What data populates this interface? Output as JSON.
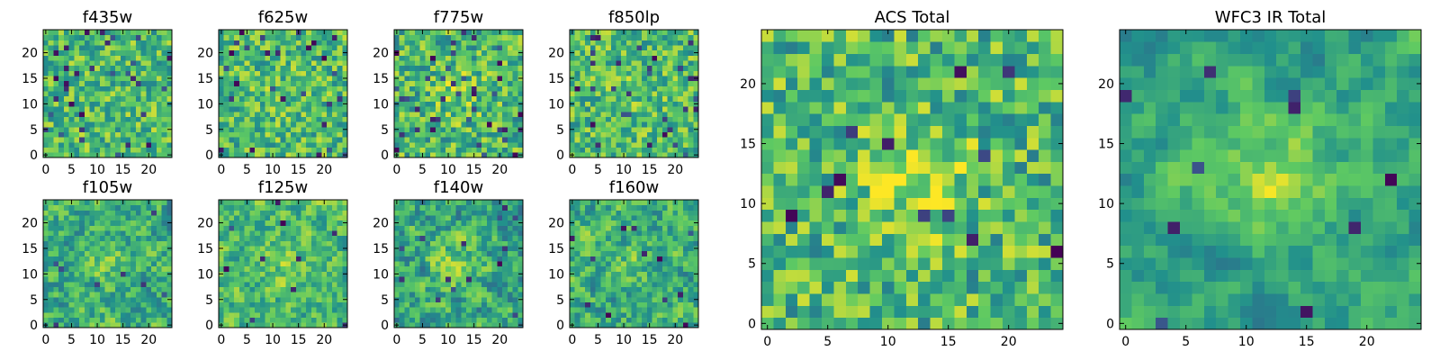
{
  "figure": {
    "colormap": "viridis",
    "color_stops": [
      "#440154",
      "#3b528b",
      "#21908c",
      "#5dc963",
      "#fde725"
    ]
  },
  "chart_data": [
    {
      "type": "heatmap",
      "title": "f435w",
      "grid_size": 25,
      "x_ticks": [
        0,
        5,
        10,
        15,
        20
      ],
      "y_ticks": [
        0,
        5,
        10,
        15,
        20
      ],
      "xlim": [
        -0.5,
        24.5
      ],
      "ylim": [
        -0.5,
        24.5
      ],
      "seed": 11,
      "smooth": 0,
      "level_range": [
        0.45,
        0.92
      ],
      "dark_spots": 34,
      "bright_center": 0.0
    },
    {
      "type": "heatmap",
      "title": "f625w",
      "grid_size": 25,
      "x_ticks": [
        0,
        5,
        10,
        15,
        20
      ],
      "y_ticks": [
        0,
        5,
        10,
        15,
        20
      ],
      "xlim": [
        -0.5,
        24.5
      ],
      "ylim": [
        -0.5,
        24.5
      ],
      "seed": 23,
      "smooth": 0,
      "level_range": [
        0.45,
        0.92
      ],
      "dark_spots": 28,
      "bright_center": 0.05
    },
    {
      "type": "heatmap",
      "title": "f775w",
      "grid_size": 25,
      "x_ticks": [
        0,
        5,
        10,
        15,
        20
      ],
      "y_ticks": [
        0,
        5,
        10,
        15,
        20
      ],
      "xlim": [
        -0.5,
        24.5
      ],
      "ylim": [
        -0.5,
        24.5
      ],
      "seed": 37,
      "smooth": 0,
      "level_range": [
        0.42,
        0.92
      ],
      "dark_spots": 40,
      "bright_center": 0.12
    },
    {
      "type": "heatmap",
      "title": "f850lp",
      "grid_size": 25,
      "x_ticks": [
        0,
        5,
        10,
        15,
        20
      ],
      "y_ticks": [
        0,
        5,
        10,
        15,
        20
      ],
      "xlim": [
        -0.5,
        24.5
      ],
      "ylim": [
        -0.5,
        24.5
      ],
      "seed": 41,
      "smooth": 0,
      "level_range": [
        0.45,
        0.92
      ],
      "dark_spots": 30,
      "bright_center": 0.05
    },
    {
      "type": "heatmap",
      "title": "f105w",
      "grid_size": 25,
      "x_ticks": [
        0,
        5,
        10,
        15,
        20
      ],
      "y_ticks": [
        0,
        5,
        10,
        15,
        20
      ],
      "xlim": [
        -0.5,
        24.5
      ],
      "ylim": [
        -0.5,
        24.5
      ],
      "seed": 53,
      "smooth": 1,
      "level_range": [
        0.3,
        0.95
      ],
      "dark_spots": 8,
      "bright_center": 0.1
    },
    {
      "type": "heatmap",
      "title": "f125w",
      "grid_size": 25,
      "x_ticks": [
        0,
        5,
        10,
        15,
        20
      ],
      "y_ticks": [
        0,
        5,
        10,
        15,
        20
      ],
      "xlim": [
        -0.5,
        24.5
      ],
      "ylim": [
        -0.5,
        24.5
      ],
      "seed": 61,
      "smooth": 1,
      "level_range": [
        0.35,
        0.97
      ],
      "dark_spots": 10,
      "bright_center": 0.12
    },
    {
      "type": "heatmap",
      "title": "f140w",
      "grid_size": 25,
      "x_ticks": [
        0,
        5,
        10,
        15,
        20
      ],
      "y_ticks": [
        0,
        5,
        10,
        15,
        20
      ],
      "xlim": [
        -0.5,
        24.5
      ],
      "ylim": [
        -0.5,
        24.5
      ],
      "seed": 71,
      "smooth": 1,
      "level_range": [
        0.25,
        0.95
      ],
      "dark_spots": 14,
      "bright_center": 0.15
    },
    {
      "type": "heatmap",
      "title": "f160w",
      "grid_size": 25,
      "x_ticks": [
        0,
        5,
        10,
        15,
        20
      ],
      "y_ticks": [
        0,
        5,
        10,
        15,
        20
      ],
      "xlim": [
        -0.5,
        24.5
      ],
      "ylim": [
        -0.5,
        24.5
      ],
      "seed": 83,
      "smooth": 1,
      "level_range": [
        0.28,
        0.95
      ],
      "dark_spots": 12,
      "bright_center": 0.1
    },
    {
      "type": "heatmap",
      "title": "ACS Total",
      "grid_size": 25,
      "x_ticks": [
        0,
        5,
        10,
        15,
        20
      ],
      "y_ticks": [
        0,
        5,
        10,
        15,
        20
      ],
      "xlim": [
        -0.5,
        24.5
      ],
      "ylim": [
        -0.5,
        24.5
      ],
      "seed": 97,
      "smooth": 0,
      "level_range": [
        0.42,
        0.93
      ],
      "dark_spots": 12,
      "bright_center": 0.22
    },
    {
      "type": "heatmap",
      "title": "WFC3 IR Total",
      "grid_size": 25,
      "x_ticks": [
        0,
        5,
        10,
        15,
        20
      ],
      "y_ticks": [
        0,
        5,
        10,
        15,
        20
      ],
      "xlim": [
        -0.5,
        24.5
      ],
      "ylim": [
        -0.5,
        24.5
      ],
      "seed": 109,
      "smooth": 2,
      "level_range": [
        0.28,
        0.9
      ],
      "dark_spots": 10,
      "bright_center": 0.3
    }
  ]
}
